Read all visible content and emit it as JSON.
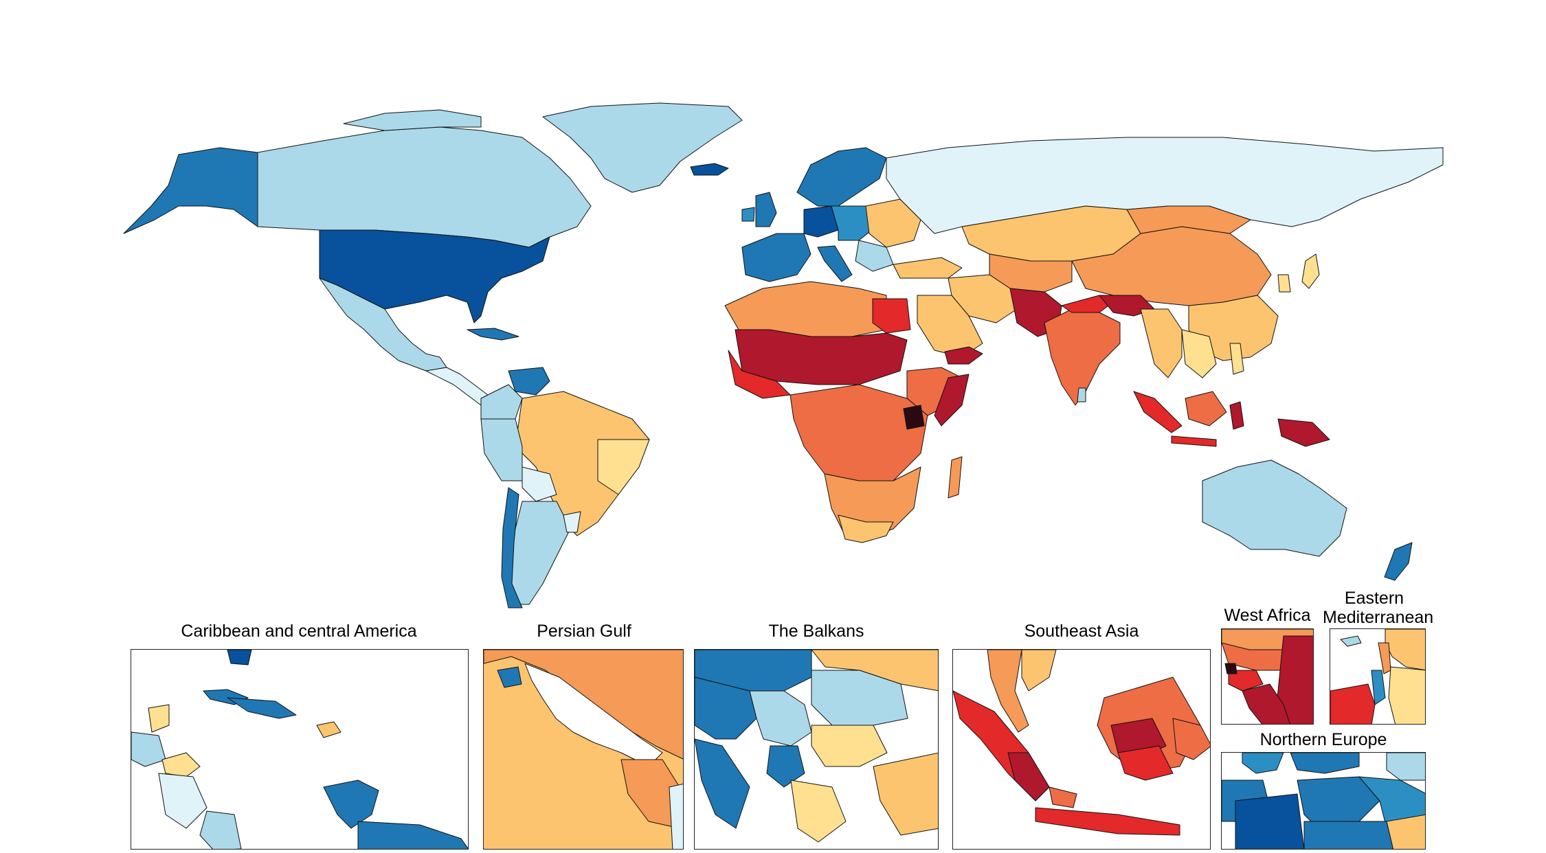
{
  "palette": {
    "darkest_blue": "#08519c",
    "dark_blue": "#1f78b4",
    "mid_blue": "#2c8fc4",
    "light_blue": "#abd9e9",
    "pale_blue": "#e0f3f8",
    "pale_yellow": "#fee090",
    "light_orange": "#fdc46f",
    "orange": "#f59a57",
    "dark_orange": "#ee6d45",
    "red": "#e3292a",
    "dark_red": "#b0182d",
    "near_black": "#2a0a10",
    "ocean": "#ffffff"
  },
  "insets": {
    "caribbean": {
      "title": "Caribbean and central America"
    },
    "persian_gulf": {
      "title": "Persian Gulf"
    },
    "balkans": {
      "title": "The Balkans"
    },
    "southeast_asia": {
      "title": "Southeast Asia"
    },
    "west_africa": {
      "title": "West Africa"
    },
    "eastern_mediterranean": {
      "title_line1": "Eastern",
      "title_line2": "Mediterranean"
    },
    "northern_europe": {
      "title": "Northern Europe"
    }
  }
}
